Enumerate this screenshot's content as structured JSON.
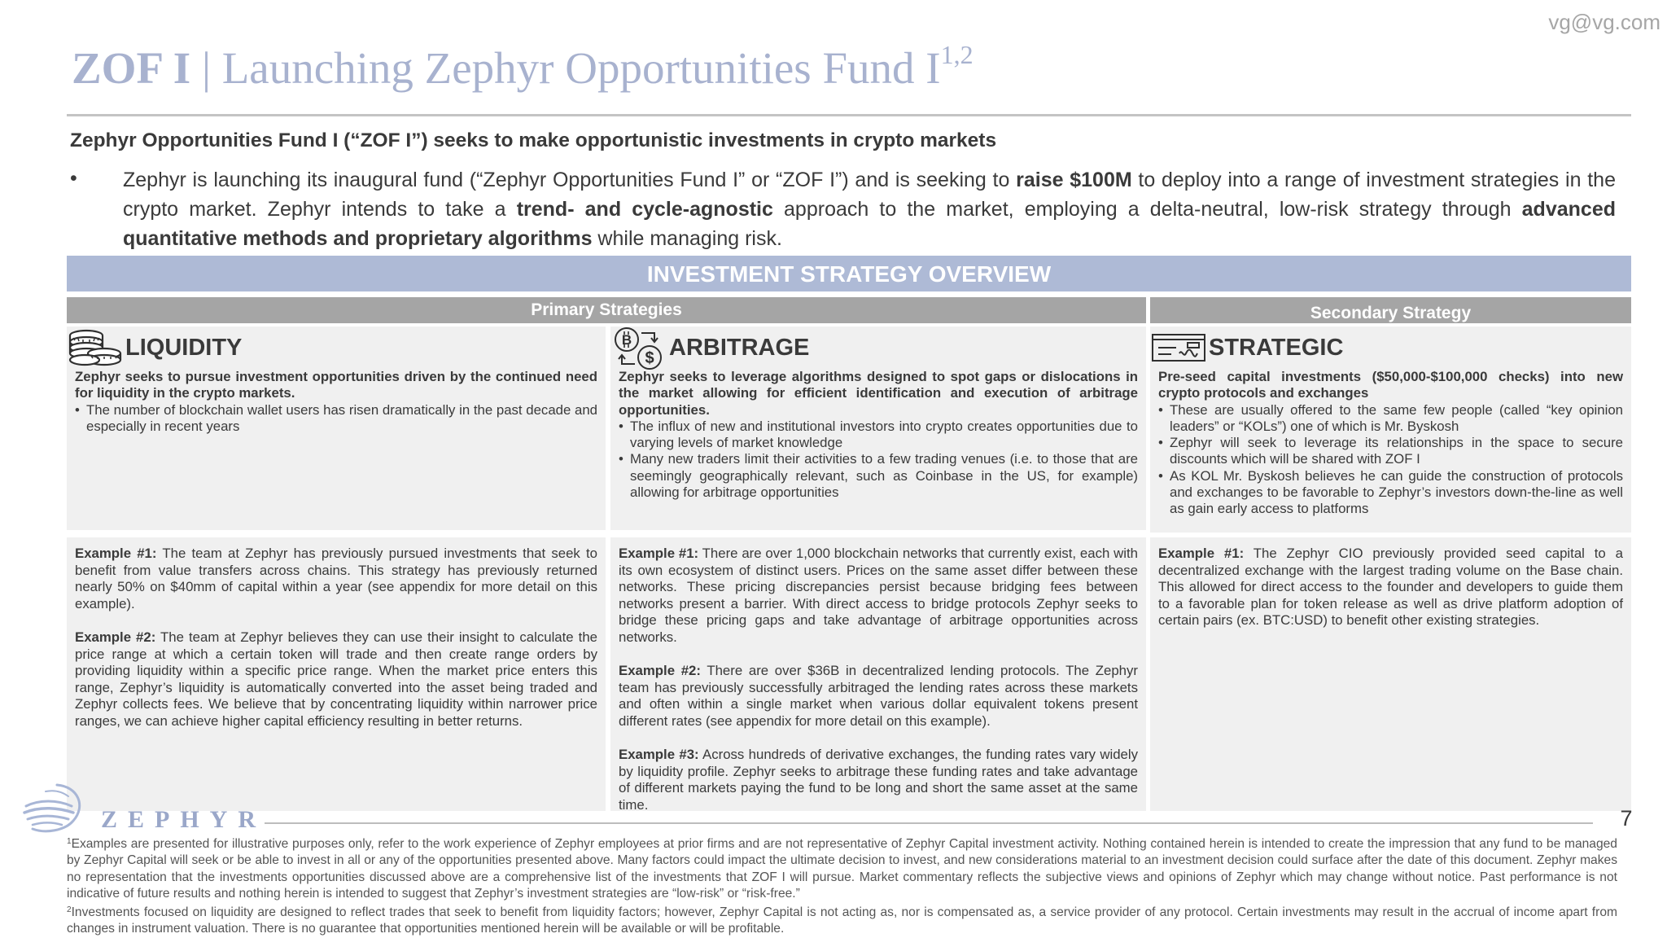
{
  "watermark": "vg@vg.com",
  "header": {
    "title_code": "ZOF I",
    "title_separator": "|",
    "title_main": "Launching Zephyr Opportunities Fund I",
    "title_superscript": "1,2"
  },
  "subtitle": "Zephyr Opportunities Fund I (“ZOF I”) seeks to make opportunistic investments in crypto markets",
  "intro": {
    "bullet": "•",
    "part1": "Zephyr is launching its inaugural fund (“Zephyr Opportunities Fund I” or “ZOF I”) and is seeking to ",
    "bold1": "raise $100M",
    "part2": " to deploy into a range of investment strategies in the crypto market. Zephyr intends to take a ",
    "bold2": "trend- and cycle-agnostic",
    "part3": " approach to the market, employing a delta-neutral, low-risk strategy through ",
    "bold3": "advanced quantitative methods and proprietary algorithms",
    "part4": " while managing risk."
  },
  "overview": {
    "title": "INVESTMENT STRATEGY OVERVIEW",
    "primary_label": "Primary Strategies",
    "secondary_label": "Secondary Strategy"
  },
  "columns": [
    {
      "icon": "coins-icon",
      "heading": "LIQUIDITY",
      "lead": "Zephyr seeks to pursue investment opportunities driven by the continued need for liquidity in the crypto markets.",
      "bullets": [
        "The number of blockchain wallet users has risen dramatically in the past decade and especially in recent years"
      ],
      "examples": [
        {
          "label": "Example #1:",
          "text": " The team at Zephyr has previously pursued investments that seek to benefit from value transfers across chains. This strategy has previously returned nearly 50% on $40mm of capital within a year (see appendix for more detail on this example)."
        },
        {
          "label": "Example #2:",
          "text": " The team at Zephyr believes they can use their insight to calculate the price range at which a certain token will trade and then create range orders by providing liquidity within a specific price range. When the market price enters this range, Zephyr’s liquidity is automatically converted into the asset being traded and Zephyr collects fees. We believe that by concentrating liquidity within narrower price ranges, we can achieve higher capital efficiency resulting in better returns."
        }
      ]
    },
    {
      "icon": "crypto-exchange-icon",
      "heading": "ARBITRAGE",
      "lead": "Zephyr seeks to leverage algorithms designed to spot gaps or dislocations in the market allowing for efficient identification and execution of arbitrage opportunities.",
      "bullets": [
        "The influx of new and institutional investors into crypto creates opportunities due to varying levels of market knowledge",
        "Many new traders limit their activities to a few trading venues (i.e. to those that are seemingly geographically relevant, such as Coinbase in the US, for example) allowing for arbitrage opportunities"
      ],
      "examples": [
        {
          "label": "Example #1:",
          "text": " There are over 1,000 blockchain networks that currently exist, each with its own ecosystem of distinct users. Prices on the same asset differ between these networks. These pricing discrepancies persist because bridging fees between networks present a barrier. With direct access to bridge protocols Zephyr seeks to bridge these pricing gaps and take advantage of arbitrage opportunities across networks."
        },
        {
          "label": "Example #2:",
          "text": " There are over $36B in decentralized lending protocols. The Zephyr team has previously successfully arbitraged the lending rates across these markets and often within a single market when various dollar equivalent tokens present different rates (see appendix for more detail on this example)."
        },
        {
          "label": "Example #3:",
          "text": " Across hundreds of derivative exchanges, the funding rates vary widely by liquidity profile. Zephyr seeks to arbitrage these funding rates and take advantage of different markets paying the fund to be long and short the same asset at the same time."
        }
      ]
    },
    {
      "icon": "check-icon",
      "heading": "STRATEGIC",
      "lead": "Pre-seed capital investments ($50,000-$100,000 checks) into new crypto protocols and exchanges",
      "bullets": [
        "These are usually offered to the same few people (called “key opinion leaders” or “KOLs”) one of which is Mr. Byskosh",
        "Zephyr will seek to leverage its relationships in the space to secure discounts which will be shared with ZOF I",
        "As KOL Mr. Byskosh believes he can guide the construction of protocols and exchanges to be favorable to Zephyr’s investors down-the-line as well as gain early access to platforms"
      ],
      "examples": [
        {
          "label": "Example #1:",
          "text": " The Zephyr CIO previously provided seed capital to a decentralized exchange with the largest trading volume on the Base chain. This allowed for direct access to the founder and developers to guide them to a favorable plan for token release as well as drive platform adoption of certain pairs (ex. BTC:USD) to benefit other existing strategies."
        }
      ]
    }
  ],
  "footer": {
    "logo_text": "ZEPHYR",
    "page_number": "7",
    "footnote1_mark": "1",
    "footnote1": "Examples are presented for illustrative purposes only, refer to the work experience of Zephyr employees at prior firms and are not representative of Zephyr Capital investment activity. Nothing contained herein is intended to create the impression that any fund to be managed by Zephyr Capital will seek or be able to invest in all or any of the opportunities presented above. Many factors could impact the ultimate decision to invest, and new considerations material to an investment decision could surface after the date of this document. Zephyr makes no representation that the investments opportunities discussed above are a comprehensive list of the investments that ZOF I will pursue. Market commentary reflects the subjective views and opinions of Zephyr which may change without notice. Past performance is not indicative of future results and nothing herein is intended to suggest that Zephyr’s investment strategies are “low-risk” or “risk-free.”",
    "footnote2_mark": "2",
    "footnote2": "Investments focused on liquidity are designed to reflect trades that seek to benefit from liquidity factors; however, Zephyr Capital is not acting as, nor is compensated as, a service provider of any protocol. Certain investments may result in the accrual of income apart from changes in instrument valuation. There is no guarantee that opportunities mentioned herein will be available or will be profitable."
  }
}
